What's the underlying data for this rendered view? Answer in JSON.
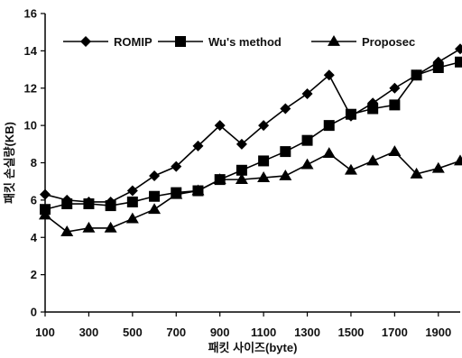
{
  "chart_data": {
    "type": "line",
    "xlabel": "패킷 사이즈(byte)",
    "ylabel": "패킷 손실량(KB)",
    "x": [
      100,
      200,
      300,
      400,
      500,
      600,
      700,
      800,
      900,
      1000,
      1100,
      1200,
      1300,
      1400,
      1500,
      1600,
      1700,
      1800,
      1900,
      2000
    ],
    "xlim": [
      100,
      2000
    ],
    "ylim": [
      0,
      16
    ],
    "xticks": [
      "100",
      "300",
      "500",
      "700",
      "900",
      "1100",
      "1300",
      "1500",
      "1700",
      "1900"
    ],
    "yticks": [
      "0",
      "2",
      "4",
      "6",
      "8",
      "10",
      "12",
      "14",
      "16"
    ],
    "grid": false,
    "legend_position": "top",
    "series": [
      {
        "name": "ROMIP",
        "marker": "diamond",
        "values": [
          6.3,
          6.0,
          5.9,
          5.9,
          6.5,
          7.3,
          7.8,
          8.9,
          10.0,
          9.0,
          10.0,
          10.9,
          11.7,
          12.7,
          10.5,
          11.2,
          12.0,
          12.7,
          13.4,
          14.1
        ]
      },
      {
        "name": "Wu's method",
        "marker": "square",
        "values": [
          5.5,
          5.8,
          5.8,
          5.7,
          5.9,
          6.2,
          6.4,
          6.5,
          7.1,
          7.6,
          8.1,
          8.6,
          9.2,
          10.0,
          10.6,
          10.9,
          11.1,
          12.7,
          13.1,
          13.4
        ]
      },
      {
        "name": "Proposec",
        "marker": "triangle",
        "values": [
          5.2,
          4.3,
          4.5,
          4.5,
          5.0,
          5.5,
          6.3,
          6.5,
          7.1,
          7.1,
          7.2,
          7.3,
          7.9,
          8.5,
          7.6,
          8.1,
          8.6,
          7.4,
          7.7,
          8.1
        ]
      }
    ]
  }
}
